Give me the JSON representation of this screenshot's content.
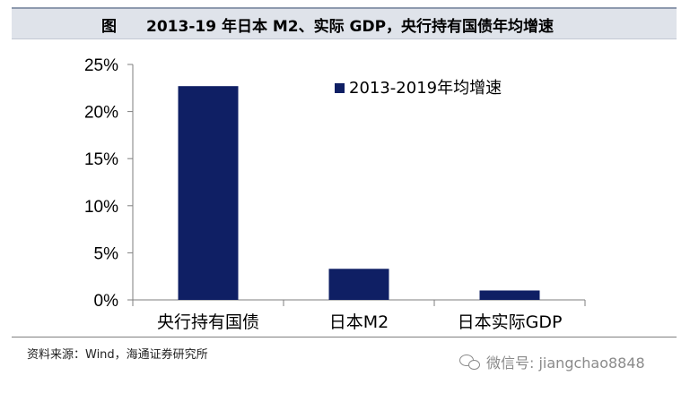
{
  "header": {
    "figure_label": "图",
    "title": "2013-19 年日本 M2、实际 GDP，央行持有国债年均增速"
  },
  "chart_data": {
    "type": "bar",
    "categories": [
      "央行持有国债",
      "日本M2",
      "日本实际GDP"
    ],
    "series": [
      {
        "name": "2013-2019年均增速",
        "values": [
          22.7,
          3.3,
          1.0
        ],
        "color": "#0f1f64"
      }
    ],
    "ylim": [
      0,
      25
    ],
    "yticks": [
      0,
      5,
      10,
      15,
      20,
      25
    ],
    "ytick_labels": [
      "0%",
      "5%",
      "10%",
      "15%",
      "20%",
      "25%"
    ],
    "grid": false,
    "legend_position": "top-right"
  },
  "footer": {
    "source": "资料来源：Wind，海通证券研究所",
    "watermark": "微信号: jiangchao8848"
  }
}
